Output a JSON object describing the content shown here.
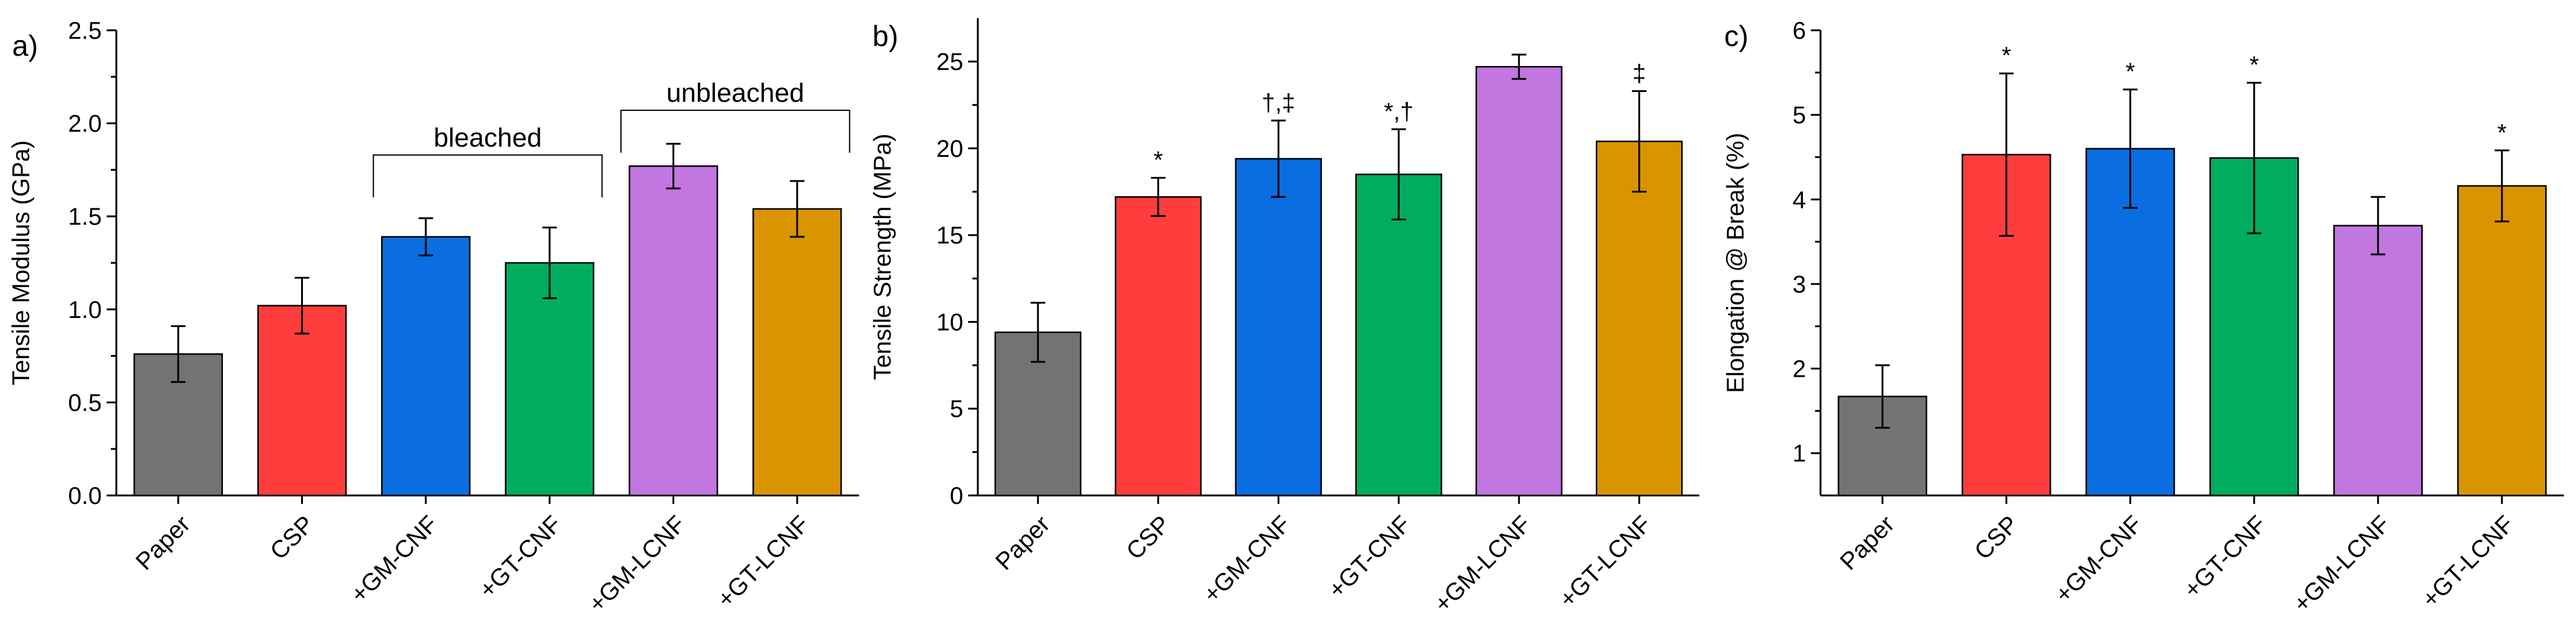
{
  "chart_data": [
    {
      "panel_label": "a)",
      "type": "bar",
      "ylabel": "Tensile Modulus (GPa)",
      "categories": [
        "Paper",
        "CSP",
        "+GM-CNF",
        "+GT-CNF",
        "+GM-LCNF",
        "+GT-LCNF"
      ],
      "values": [
        0.76,
        1.02,
        1.39,
        1.25,
        1.77,
        1.54
      ],
      "errors": [
        0.15,
        0.15,
        0.1,
        0.19,
        0.12,
        0.15
      ],
      "significance": [
        "",
        "",
        "",
        "",
        "",
        ""
      ],
      "ylim": [
        0,
        2.5
      ],
      "yticks": [
        0.0,
        0.5,
        1.0,
        1.5,
        2.0,
        2.5
      ],
      "ytick_labels": [
        "0.0",
        "0.5",
        "1.0",
        "1.5",
        "2.0",
        "2.5"
      ],
      "annotations": [
        {
          "text": "bleached",
          "from_index": 2,
          "to_index": 3,
          "level": 1.83
        },
        {
          "text": "unbleached",
          "from_index": 4,
          "to_index": 5,
          "level": 2.07
        }
      ]
    },
    {
      "panel_label": "b)",
      "type": "bar",
      "ylabel": "Tensile Strength (MPa)",
      "categories": [
        "Paper",
        "CSP",
        "+GM-CNF",
        "+GT-CNF",
        "+GM-LCNF",
        "+GT-LCNF"
      ],
      "values": [
        9.4,
        17.2,
        19.4,
        18.5,
        24.7,
        20.4
      ],
      "errors": [
        1.7,
        1.1,
        2.2,
        2.6,
        0.7,
        2.9
      ],
      "significance": [
        "",
        "*",
        "†,‡",
        "*,†",
        "",
        "‡"
      ],
      "ylim": [
        0,
        27.5
      ],
      "yticks": [
        0,
        5,
        10,
        15,
        20,
        25
      ],
      "ytick_labels": [
        "0",
        "5",
        "10",
        "15",
        "20",
        "25"
      ],
      "annotations": []
    },
    {
      "panel_label": "c)",
      "type": "bar",
      "ylabel": "Elongation @ Break (%)",
      "categories": [
        "Paper",
        "CSP",
        "+GM-CNF",
        "+GT-CNF",
        "+GM-LCNF",
        "+GT-LCNF"
      ],
      "values": [
        1.67,
        4.53,
        4.6,
        4.49,
        3.69,
        4.16
      ],
      "errors": [
        0.37,
        0.96,
        0.7,
        0.89,
        0.34,
        0.42
      ],
      "significance": [
        "",
        "*",
        "*",
        "*",
        "",
        "*"
      ],
      "ylim": [
        0.5,
        6
      ],
      "yticks": [
        1,
        2,
        3,
        4,
        5,
        6
      ],
      "ytick_labels": [
        "1",
        "2",
        "3",
        "4",
        "5",
        "6"
      ],
      "annotations": []
    }
  ],
  "bar_colors": [
    "#737373",
    "#ff3d3d",
    "#0a6ee0",
    "#00ad5e",
    "#c276e0",
    "#d99400"
  ],
  "axis_color": "#000000",
  "bar_edge_color": "#000000"
}
